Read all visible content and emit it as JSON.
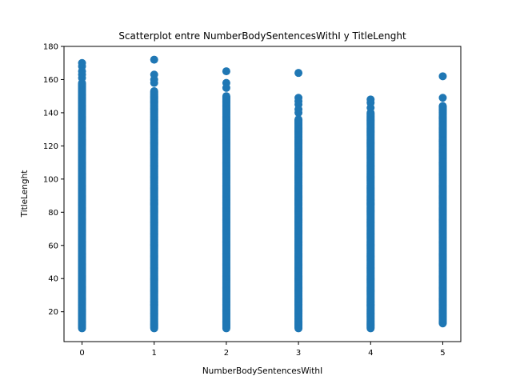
{
  "chart_data": {
    "type": "scatter",
    "title": "Scatterplot entre NumberBodySentencesWithI y TitleLenght",
    "xlabel": "NumberBodySentencesWithI",
    "ylabel": "TitleLenght",
    "xlim": [
      -0.25,
      5.25
    ],
    "ylim": [
      2,
      180
    ],
    "x_ticks": [
      0,
      1,
      2,
      3,
      4,
      5
    ],
    "y_ticks": [
      20,
      40,
      60,
      80,
      100,
      120,
      140,
      160,
      180
    ],
    "grid": false,
    "marker_color": "#1f77b4",
    "series": [
      {
        "x": [
          0,
          1,
          2,
          3,
          4,
          5
        ],
        "y_min": [
          10,
          10,
          10,
          10,
          10,
          13
        ],
        "y_dense_max": [
          158,
          153,
          150,
          136,
          140,
          144
        ],
        "outliers": [
          [
            0,
            170
          ],
          [
            0,
            168
          ],
          [
            0,
            165
          ],
          [
            0,
            163
          ],
          [
            0,
            161
          ],
          [
            1,
            172
          ],
          [
            1,
            163
          ],
          [
            1,
            160
          ],
          [
            1,
            158
          ],
          [
            2,
            165
          ],
          [
            2,
            158
          ],
          [
            2,
            155
          ],
          [
            3,
            164
          ],
          [
            3,
            149
          ],
          [
            3,
            147
          ],
          [
            3,
            145
          ],
          [
            3,
            142
          ],
          [
            3,
            140
          ],
          [
            4,
            148
          ],
          [
            4,
            146
          ],
          [
            4,
            143
          ],
          [
            5,
            162
          ],
          [
            5,
            149
          ],
          [
            5,
            144
          ],
          [
            5,
            142
          ],
          [
            5,
            140
          ],
          [
            5,
            137
          ],
          [
            5,
            132
          ],
          [
            5,
            128
          ],
          [
            5,
            123
          ],
          [
            5,
            118
          ],
          [
            5,
            114
          ],
          [
            5,
            110
          ]
        ]
      }
    ]
  }
}
